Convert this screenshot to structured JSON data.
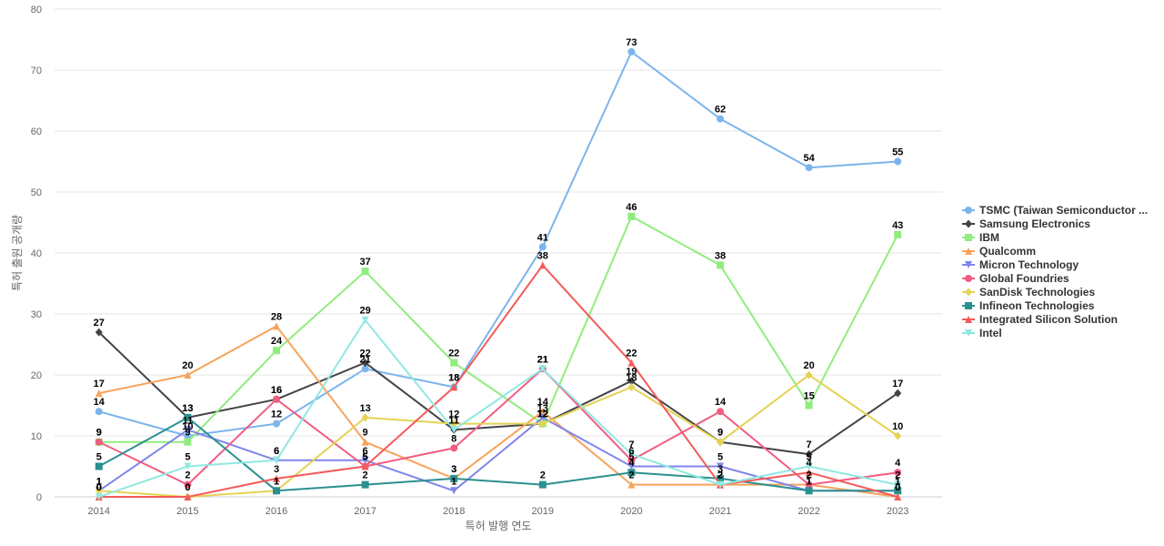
{
  "chart_data": {
    "type": "line",
    "title": "",
    "xlabel": "특허 발행 연도",
    "ylabel": "특허 출원 공개량",
    "ylim": [
      0,
      80
    ],
    "yticks": [
      0,
      10,
      20,
      30,
      40,
      50,
      60,
      70,
      80
    ],
    "x": [
      "2014",
      "2015",
      "2016",
      "2017",
      "2018",
      "2019",
      "2020",
      "2021",
      "2022",
      "2023"
    ],
    "grid": true,
    "legend_position": "right",
    "series": [
      {
        "name": "TSMC (Taiwan Semiconductor ...",
        "color": "#7cb5ec",
        "marker": "circle",
        "values": [
          14,
          10,
          12,
          21,
          18,
          41,
          73,
          62,
          54,
          55
        ]
      },
      {
        "name": "Samsung Electronics",
        "color": "#434348",
        "marker": "diamond",
        "values": [
          27,
          13,
          16,
          22,
          11,
          12,
          19,
          9,
          7,
          17
        ]
      },
      {
        "name": "IBM",
        "color": "#90ed7d",
        "marker": "square",
        "values": [
          9,
          9,
          24,
          37,
          22,
          12,
          46,
          38,
          15,
          43
        ]
      },
      {
        "name": "Qualcomm",
        "color": "#f7a35c",
        "marker": "triangle",
        "values": [
          17,
          20,
          28,
          9,
          3,
          14,
          2,
          2,
          2,
          0
        ]
      },
      {
        "name": "Micron Technology",
        "color": "#8085e9",
        "marker": "triangle-down",
        "values": [
          1,
          11,
          6,
          6,
          1,
          13,
          5,
          5,
          1,
          1
        ]
      },
      {
        "name": "Global Foundries",
        "color": "#f15c80",
        "marker": "circle",
        "values": [
          9,
          2,
          16,
          5,
          8,
          21,
          6,
          14,
          2,
          4
        ]
      },
      {
        "name": "SanDisk Technologies",
        "color": "#e4d354",
        "marker": "diamond",
        "values": [
          1,
          0,
          1,
          13,
          12,
          12,
          18,
          9,
          20,
          10
        ]
      },
      {
        "name": "Infineon Technologies",
        "color": "#2b908f",
        "marker": "square",
        "values": [
          5,
          13,
          1,
          2,
          3,
          2,
          4,
          3,
          1,
          1
        ]
      },
      {
        "name": "Integrated Silicon Solution",
        "color": "#f45b5b",
        "marker": "triangle",
        "values": [
          0,
          0,
          3,
          5,
          18,
          38,
          22,
          2,
          4,
          0
        ]
      },
      {
        "name": "Intel",
        "color": "#91e8e1",
        "marker": "triangle-down",
        "values": [
          0,
          5,
          6,
          29,
          11,
          21,
          7,
          2,
          5,
          2
        ]
      }
    ]
  }
}
